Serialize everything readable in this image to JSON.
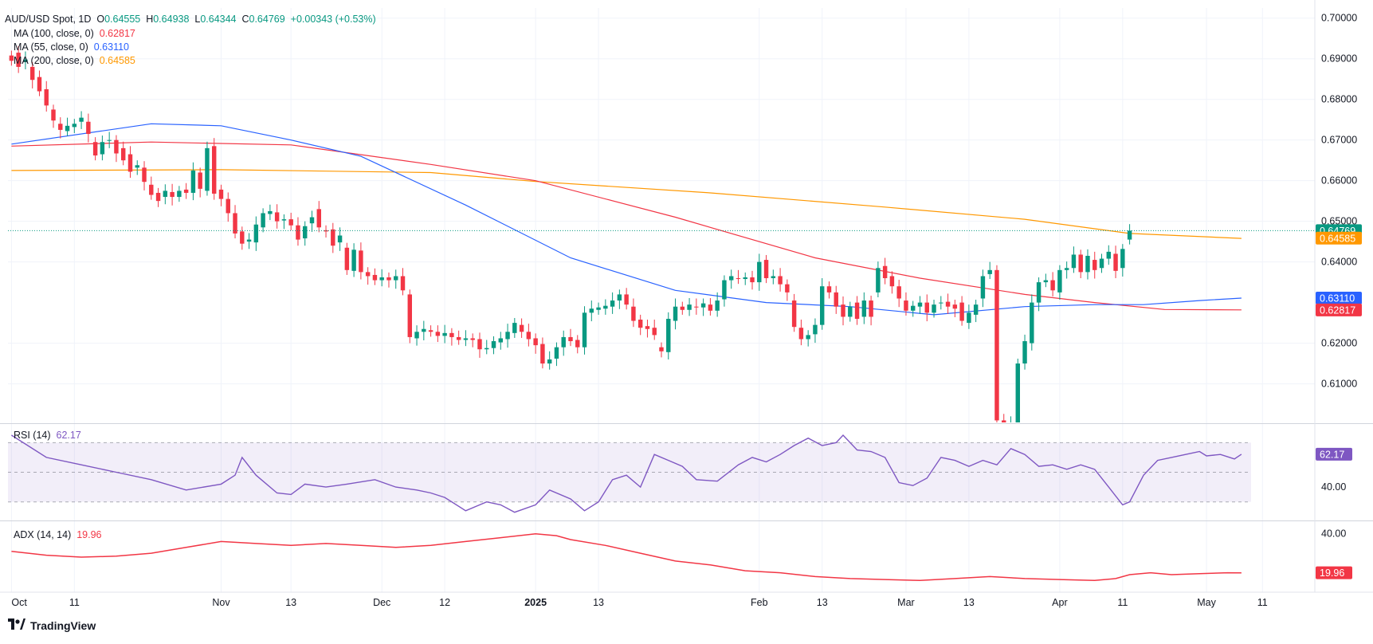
{
  "header": {
    "symbol": "AUD/USD Spot, 1D",
    "open_label": "O",
    "open": "0.64555",
    "high_label": "H",
    "high": "0.64938",
    "low_label": "L",
    "low": "0.64344",
    "close_label": "C",
    "close": "0.64769",
    "change": "+0.00343 (+0.53%)"
  },
  "ma_legend": [
    {
      "label": "MA (100, close, 0)",
      "value": "0.62817",
      "color": "#f23645"
    },
    {
      "label": "MA (55, close, 0)",
      "value": "0.63110",
      "color": "#2962ff"
    },
    {
      "label": "MA (200, close, 0)",
      "value": "0.64585",
      "color": "#ff9800"
    }
  ],
  "rsi_legend": {
    "label": "RSI (14)",
    "value": "62.17"
  },
  "adx_legend": {
    "label": "ADX (14, 14)",
    "value": "19.96"
  },
  "brand": "TradingView",
  "colors": {
    "up": "#089981",
    "down": "#f23645",
    "rsi": "#7e57c2",
    "adx": "#f23645",
    "ma100": "#f23645",
    "ma55": "#2962ff",
    "ma200": "#ff9800"
  },
  "chart_data": {
    "type": "candlestick",
    "title": "AUD/USD Spot, 1D",
    "x_tick_labels": [
      {
        "i": 0,
        "label": "Oct"
      },
      {
        "i": 9,
        "label": "11"
      },
      {
        "i": 30,
        "label": "Nov"
      },
      {
        "i": 40,
        "label": "13"
      },
      {
        "i": 53,
        "label": "Dec"
      },
      {
        "i": 62,
        "label": "12"
      },
      {
        "i": 75,
        "label": "2025"
      },
      {
        "i": 84,
        "label": "13"
      },
      {
        "i": 107,
        "label": "Feb"
      },
      {
        "i": 116,
        "label": "13"
      },
      {
        "i": 128,
        "label": "Mar"
      },
      {
        "i": 137,
        "label": "13"
      },
      {
        "i": 150,
        "label": "Apr"
      },
      {
        "i": 159,
        "label": "11"
      },
      {
        "i": 171,
        "label": "May"
      },
      {
        "i": 179,
        "label": "11"
      }
    ],
    "price_axis": {
      "min": 0.6005,
      "max": 0.7025,
      "ticks": [
        "0.61000",
        "0.62000",
        "0.64000",
        "0.65000",
        "0.66000",
        "0.67000",
        "0.68000",
        "0.69000",
        "0.70000"
      ],
      "last_price_label": "0.64769",
      "ma_labels": [
        {
          "series": "MA 200",
          "value": 0.64585,
          "label": "0.64585",
          "color": "#ff9800"
        },
        {
          "series": "MA 55",
          "value": 0.6311,
          "label": "0.63110",
          "color": "#2962ff"
        },
        {
          "series": "MA 100",
          "value": 0.62817,
          "label": "0.62817",
          "color": "#f23645"
        }
      ]
    },
    "candles": [
      {
        "c": 0.6895,
        "o": 0.6908
      },
      {
        "o": 0.6915,
        "c": 0.688
      },
      {
        "o": 0.6892,
        "c": 0.6898
      },
      {
        "o": 0.688,
        "c": 0.6848
      },
      {
        "o": 0.6855,
        "c": 0.682
      },
      {
        "o": 0.6825,
        "c": 0.6785
      },
      {
        "o": 0.6775,
        "c": 0.6748
      },
      {
        "o": 0.674,
        "c": 0.6725
      },
      {
        "o": 0.6722,
        "c": 0.6735
      },
      {
        "o": 0.6732,
        "c": 0.674
      },
      {
        "o": 0.6745,
        "c": 0.6755
      },
      {
        "o": 0.6745,
        "c": 0.6715
      },
      {
        "o": 0.6695,
        "c": 0.6662
      },
      {
        "o": 0.6665,
        "c": 0.6695
      },
      {
        "o": 0.6698,
        "c": 0.67
      },
      {
        "o": 0.67,
        "c": 0.6667
      },
      {
        "o": 0.668,
        "c": 0.665
      },
      {
        "o": 0.6665,
        "c": 0.6622
      },
      {
        "o": 0.6632,
        "c": 0.6638
      },
      {
        "o": 0.6632,
        "c": 0.6597
      },
      {
        "o": 0.659,
        "c": 0.6565
      },
      {
        "o": 0.657,
        "c": 0.655
      },
      {
        "o": 0.656,
        "c": 0.6575
      },
      {
        "o": 0.6572,
        "c": 0.656
      },
      {
        "o": 0.656,
        "c": 0.6575
      },
      {
        "o": 0.6578,
        "c": 0.657
      },
      {
        "o": 0.657,
        "c": 0.6625
      },
      {
        "o": 0.662,
        "c": 0.658
      },
      {
        "o": 0.6575,
        "c": 0.668
      },
      {
        "o": 0.6685,
        "c": 0.6568
      },
      {
        "o": 0.6578,
        "c": 0.6555
      },
      {
        "o": 0.6555,
        "c": 0.652
      },
      {
        "o": 0.652,
        "c": 0.647
      },
      {
        "o": 0.6475,
        "c": 0.6445
      },
      {
        "o": 0.645,
        "c": 0.6455
      },
      {
        "o": 0.6448,
        "c": 0.6492
      },
      {
        "o": 0.6485,
        "c": 0.652
      },
      {
        "o": 0.6518,
        "c": 0.6525
      },
      {
        "o": 0.6522,
        "c": 0.65
      },
      {
        "o": 0.6502,
        "c": 0.6505
      },
      {
        "o": 0.6505,
        "c": 0.649
      },
      {
        "o": 0.649,
        "c": 0.6455
      },
      {
        "o": 0.6458,
        "c": 0.6488
      },
      {
        "o": 0.6495,
        "c": 0.651
      },
      {
        "o": 0.653,
        "c": 0.6485
      },
      {
        "o": 0.6478,
        "c": 0.6475
      },
      {
        "o": 0.648,
        "c": 0.644
      },
      {
        "o": 0.6448,
        "c": 0.6465
      },
      {
        "o": 0.6435,
        "c": 0.638
      },
      {
        "o": 0.6378,
        "c": 0.643
      },
      {
        "o": 0.6428,
        "c": 0.6375
      },
      {
        "o": 0.6375,
        "c": 0.6365
      },
      {
        "o": 0.6368,
        "c": 0.6355
      },
      {
        "o": 0.6355,
        "c": 0.6362
      },
      {
        "o": 0.6362,
        "c": 0.6355
      },
      {
        "o": 0.6355,
        "c": 0.6365
      },
      {
        "o": 0.6365,
        "c": 0.633
      },
      {
        "o": 0.632,
        "c": 0.6215
      },
      {
        "o": 0.6212,
        "c": 0.6228
      },
      {
        "o": 0.6228,
        "c": 0.6235
      },
      {
        "o": 0.6232,
        "c": 0.6228
      },
      {
        "o": 0.6228,
        "c": 0.6218
      },
      {
        "o": 0.6218,
        "c": 0.6225
      },
      {
        "o": 0.6225,
        "c": 0.6215
      },
      {
        "o": 0.6215,
        "c": 0.6208
      },
      {
        "o": 0.6208,
        "c": 0.6212
      },
      {
        "o": 0.6212,
        "c": 0.6208
      },
      {
        "o": 0.621,
        "c": 0.6185
      },
      {
        "o": 0.6185,
        "c": 0.6188
      },
      {
        "o": 0.6188,
        "c": 0.6205
      },
      {
        "o": 0.6202,
        "c": 0.6212
      },
      {
        "o": 0.621,
        "c": 0.6228
      },
      {
        "o": 0.6225,
        "c": 0.625
      },
      {
        "o": 0.6245,
        "c": 0.6228
      },
      {
        "o": 0.6228,
        "c": 0.621
      },
      {
        "o": 0.6212,
        "c": 0.6195
      },
      {
        "o": 0.6198,
        "c": 0.615
      },
      {
        "o": 0.615,
        "c": 0.616
      },
      {
        "o": 0.6162,
        "c": 0.619
      },
      {
        "o": 0.619,
        "c": 0.6215
      },
      {
        "o": 0.6215,
        "c": 0.6205
      },
      {
        "o": 0.6208,
        "c": 0.619
      },
      {
        "o": 0.619,
        "c": 0.6275
      },
      {
        "o": 0.6275,
        "c": 0.6285
      },
      {
        "o": 0.6282,
        "c": 0.6288
      },
      {
        "o": 0.6285,
        "c": 0.6292
      },
      {
        "o": 0.629,
        "c": 0.6305
      },
      {
        "o": 0.6305,
        "c": 0.632
      },
      {
        "o": 0.632,
        "c": 0.6295
      },
      {
        "o": 0.629,
        "c": 0.6255
      },
      {
        "o": 0.6258,
        "c": 0.6238
      },
      {
        "o": 0.6242,
        "c": 0.6235
      },
      {
        "o": 0.6238,
        "c": 0.622
      },
      {
        "o": 0.619,
        "c": 0.618
      },
      {
        "o": 0.6178,
        "c": 0.626
      },
      {
        "o": 0.6255,
        "c": 0.629
      },
      {
        "o": 0.629,
        "c": 0.6282
      },
      {
        "o": 0.6282,
        "c": 0.6295
      },
      {
        "o": 0.629,
        "c": 0.6288
      },
      {
        "o": 0.6288,
        "c": 0.6298
      },
      {
        "o": 0.6295,
        "c": 0.628
      },
      {
        "o": 0.628,
        "c": 0.6305
      },
      {
        "o": 0.6308,
        "c": 0.6355
      },
      {
        "o": 0.6355,
        "c": 0.6365
      },
      {
        "o": 0.636,
        "c": 0.6358
      },
      {
        "o": 0.6358,
        "c": 0.6362
      },
      {
        "o": 0.6362,
        "c": 0.635
      },
      {
        "o": 0.635,
        "c": 0.64
      },
      {
        "o": 0.6405,
        "c": 0.636
      },
      {
        "o": 0.636,
        "c": 0.6365
      },
      {
        "o": 0.6365,
        "c": 0.6345
      },
      {
        "o": 0.6345,
        "c": 0.6325
      },
      {
        "o": 0.6305,
        "c": 0.624
      },
      {
        "o": 0.6238,
        "c": 0.621
      },
      {
        "o": 0.621,
        "c": 0.622
      },
      {
        "o": 0.6222,
        "c": 0.6245
      },
      {
        "o": 0.6245,
        "c": 0.634
      },
      {
        "o": 0.634,
        "c": 0.6325
      },
      {
        "o": 0.6325,
        "c": 0.629
      },
      {
        "o": 0.6295,
        "c": 0.6265
      },
      {
        "o": 0.6265,
        "c": 0.629
      },
      {
        "o": 0.63,
        "c": 0.626
      },
      {
        "o": 0.6265,
        "c": 0.6305
      },
      {
        "o": 0.6305,
        "c": 0.6265
      },
      {
        "o": 0.6325,
        "c": 0.6385
      },
      {
        "o": 0.639,
        "c": 0.636
      },
      {
        "o": 0.6365,
        "c": 0.634
      },
      {
        "o": 0.634,
        "c": 0.631
      },
      {
        "o": 0.6305,
        "c": 0.628
      },
      {
        "o": 0.628,
        "c": 0.6292
      },
      {
        "o": 0.629,
        "c": 0.63
      },
      {
        "o": 0.63,
        "c": 0.6275
      },
      {
        "o": 0.6275,
        "c": 0.6295
      },
      {
        "o": 0.6298,
        "c": 0.63
      },
      {
        "o": 0.6302,
        "c": 0.629
      },
      {
        "o": 0.6295,
        "c": 0.6285
      },
      {
        "o": 0.63,
        "c": 0.6255
      },
      {
        "o": 0.625,
        "c": 0.6275
      },
      {
        "o": 0.627,
        "c": 0.6295
      },
      {
        "o": 0.631,
        "c": 0.6365
      },
      {
        "o": 0.637,
        "c": 0.638
      },
      {
        "o": 0.638,
        "c": 0.601
      },
      {
        "o": 0.601,
        "c": 0.6
      },
      {
        "o": 0.6,
        "c": 0.6
      },
      {
        "o": 0.6,
        "c": 0.615
      },
      {
        "o": 0.615,
        "c": 0.6205
      },
      {
        "o": 0.62,
        "c": 0.63
      },
      {
        "o": 0.63,
        "c": 0.635
      },
      {
        "o": 0.635,
        "c": 0.6355
      },
      {
        "o": 0.6355,
        "c": 0.633
      },
      {
        "o": 0.6325,
        "c": 0.638
      },
      {
        "o": 0.638,
        "c": 0.6385
      },
      {
        "o": 0.6385,
        "c": 0.6418
      },
      {
        "o": 0.6418,
        "c": 0.6375
      },
      {
        "o": 0.6375,
        "c": 0.6415
      },
      {
        "o": 0.6405,
        "c": 0.638
      },
      {
        "o": 0.6385,
        "c": 0.6408
      },
      {
        "o": 0.6408,
        "c": 0.6425
      },
      {
        "o": 0.642,
        "c": 0.6378
      },
      {
        "o": 0.6385,
        "c": 0.6432
      },
      {
        "o": 0.6455,
        "c": 0.6477
      }
    ],
    "ma100": [
      [
        0,
        0.6685
      ],
      [
        20,
        0.6695
      ],
      [
        40,
        0.6688
      ],
      [
        60,
        0.664
      ],
      [
        75,
        0.66
      ],
      [
        95,
        0.651
      ],
      [
        115,
        0.641
      ],
      [
        130,
        0.636
      ],
      [
        145,
        0.632
      ],
      [
        155,
        0.63
      ],
      [
        165,
        0.6283
      ],
      [
        176,
        0.6282
      ]
    ],
    "ma55": [
      [
        0,
        0.669
      ],
      [
        20,
        0.674
      ],
      [
        30,
        0.6735
      ],
      [
        40,
        0.67
      ],
      [
        50,
        0.666
      ],
      [
        65,
        0.654
      ],
      [
        80,
        0.641
      ],
      [
        95,
        0.633
      ],
      [
        108,
        0.63
      ],
      [
        120,
        0.629
      ],
      [
        132,
        0.627
      ],
      [
        145,
        0.629
      ],
      [
        155,
        0.6295
      ],
      [
        162,
        0.6295
      ],
      [
        170,
        0.6305
      ],
      [
        176,
        0.6311
      ]
    ],
    "ma200": [
      [
        0,
        0.6625
      ],
      [
        30,
        0.6627
      ],
      [
        60,
        0.662
      ],
      [
        75,
        0.6598
      ],
      [
        100,
        0.657
      ],
      [
        125,
        0.6535
      ],
      [
        145,
        0.6505
      ],
      [
        160,
        0.647
      ],
      [
        176,
        0.6458
      ]
    ],
    "rsi": {
      "title": "RSI (14)",
      "last": "62.17",
      "tick": "40.00",
      "range": [
        18,
        82
      ],
      "band": [
        30,
        70
      ],
      "values": [
        [
          0,
          75
        ],
        [
          5,
          60
        ],
        [
          10,
          55
        ],
        [
          15,
          50
        ],
        [
          20,
          45
        ],
        [
          25,
          38
        ],
        [
          30,
          42
        ],
        [
          32,
          48
        ],
        [
          33,
          60
        ],
        [
          35,
          48
        ],
        [
          38,
          36
        ],
        [
          40,
          35
        ],
        [
          42,
          42
        ],
        [
          45,
          40
        ],
        [
          48,
          42
        ],
        [
          52,
          45
        ],
        [
          55,
          40
        ],
        [
          58,
          38
        ],
        [
          60,
          36
        ],
        [
          62,
          33
        ],
        [
          65,
          24
        ],
        [
          68,
          30
        ],
        [
          70,
          28
        ],
        [
          72,
          23
        ],
        [
          75,
          28
        ],
        [
          77,
          38
        ],
        [
          80,
          32
        ],
        [
          82,
          24
        ],
        [
          84,
          30
        ],
        [
          86,
          45
        ],
        [
          88,
          48
        ],
        [
          90,
          40
        ],
        [
          92,
          62
        ],
        [
          94,
          58
        ],
        [
          96,
          54
        ],
        [
          98,
          45
        ],
        [
          101,
          44
        ],
        [
          104,
          55
        ],
        [
          106,
          60
        ],
        [
          108,
          57
        ],
        [
          110,
          62
        ],
        [
          112,
          68
        ],
        [
          114,
          73
        ],
        [
          116,
          68
        ],
        [
          118,
          70
        ],
        [
          119,
          75
        ],
        [
          121,
          65
        ],
        [
          123,
          64
        ],
        [
          125,
          60
        ],
        [
          127,
          43
        ],
        [
          129,
          41
        ],
        [
          131,
          46
        ],
        [
          133,
          60
        ],
        [
          135,
          58
        ],
        [
          137,
          54
        ],
        [
          139,
          58
        ],
        [
          141,
          55
        ],
        [
          143,
          66
        ],
        [
          145,
          62
        ],
        [
          147,
          54
        ],
        [
          149,
          55
        ],
        [
          151,
          52
        ],
        [
          153,
          55
        ],
        [
          155,
          52
        ],
        [
          157,
          40
        ],
        [
          159,
          28
        ],
        [
          160,
          30
        ],
        [
          162,
          48
        ],
        [
          164,
          58
        ],
        [
          166,
          60
        ],
        [
          168,
          62
        ],
        [
          170,
          64
        ],
        [
          171,
          61
        ],
        [
          173,
          62
        ],
        [
          175,
          59
        ],
        [
          176,
          62.17
        ]
      ]
    },
    "adx": {
      "title": "ADX (14, 14)",
      "last": "19.96",
      "tick": "40.00",
      "range": [
        10,
        46
      ],
      "values": [
        [
          0,
          31
        ],
        [
          5,
          29
        ],
        [
          10,
          28
        ],
        [
          15,
          28.5
        ],
        [
          20,
          30
        ],
        [
          25,
          33
        ],
        [
          30,
          36
        ],
        [
          35,
          35
        ],
        [
          40,
          34
        ],
        [
          45,
          35
        ],
        [
          50,
          34
        ],
        [
          55,
          33
        ],
        [
          60,
          34
        ],
        [
          65,
          36
        ],
        [
          70,
          38
        ],
        [
          75,
          40
        ],
        [
          78,
          39
        ],
        [
          80,
          37
        ],
        [
          85,
          34
        ],
        [
          90,
          30
        ],
        [
          95,
          26
        ],
        [
          100,
          24
        ],
        [
          105,
          21
        ],
        [
          110,
          20
        ],
        [
          115,
          18
        ],
        [
          120,
          17
        ],
        [
          125,
          16.5
        ],
        [
          130,
          16
        ],
        [
          135,
          17
        ],
        [
          140,
          18
        ],
        [
          145,
          17
        ],
        [
          150,
          16.5
        ],
        [
          155,
          16
        ],
        [
          158,
          17
        ],
        [
          160,
          19
        ],
        [
          163,
          20
        ],
        [
          166,
          19
        ],
        [
          170,
          19.5
        ],
        [
          174,
          20
        ],
        [
          176,
          19.96
        ]
      ]
    }
  }
}
